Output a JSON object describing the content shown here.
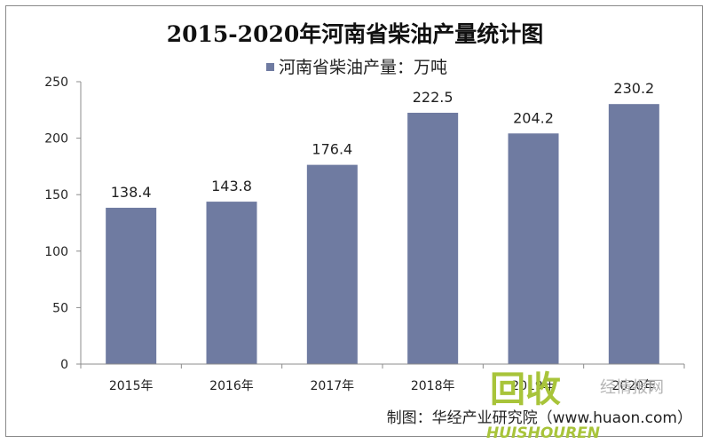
{
  "chart_data": {
    "type": "bar",
    "title": "2015-2020年河南省柴油产量统计图",
    "series": [
      {
        "name": "河南省柴油产量：万吨",
        "values": [
          138.4,
          143.8,
          176.4,
          222.5,
          204.2,
          230.2
        ],
        "color": "#6f7ba1"
      }
    ],
    "categories": [
      "2015年",
      "2016年",
      "2017年",
      "2018年",
      "2019年",
      "2020年"
    ],
    "data_labels": [
      "138.4",
      "143.8",
      "176.4",
      "222.5",
      "204.2",
      "230.2"
    ],
    "ylim": [
      0,
      250
    ],
    "yticks": [
      0,
      50,
      100,
      150,
      200,
      250
    ],
    "grid": false,
    "legend_position": "top-center"
  },
  "source": "制图：华经产业研究院（www.huaon.com）",
  "watermark": {
    "brand": "回收",
    "brand_sub": "HUISHOUREN",
    "site": "经情报网"
  }
}
